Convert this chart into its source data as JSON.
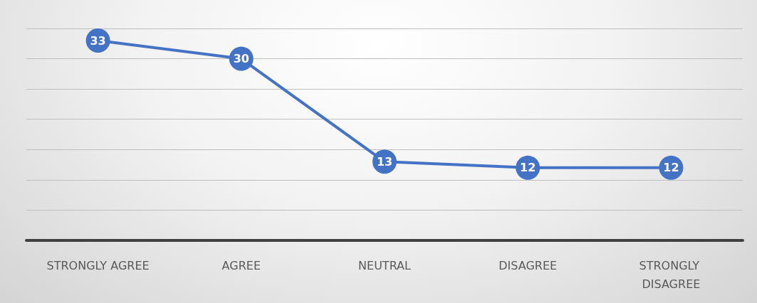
{
  "chart_data": {
    "type": "line",
    "categories": [
      "STRONGLY AGREE",
      "AGREE",
      "NEUTRAL",
      "DISAGREE",
      "STRONGLY DISAGREE"
    ],
    "series": [
      {
        "color": "#4472c4",
        "values": [
          33,
          30,
          13,
          12,
          12
        ]
      }
    ],
    "ylim": [
      0,
      35
    ],
    "yticks": [
      {
        "value": 0,
        "label": null
      },
      {
        "value": 5,
        "label": null
      },
      {
        "value": 10,
        "label": null
      },
      {
        "value": 15,
        "label": null
      },
      {
        "value": 20,
        "label": null
      },
      {
        "value": 25,
        "label": null
      },
      {
        "value": 30,
        "label": null
      },
      {
        "value": 35,
        "label": null
      }
    ],
    "grid": "y",
    "tick_labels": "x",
    "data_labels": true,
    "marker": "circle",
    "line_style": "solid"
  }
}
